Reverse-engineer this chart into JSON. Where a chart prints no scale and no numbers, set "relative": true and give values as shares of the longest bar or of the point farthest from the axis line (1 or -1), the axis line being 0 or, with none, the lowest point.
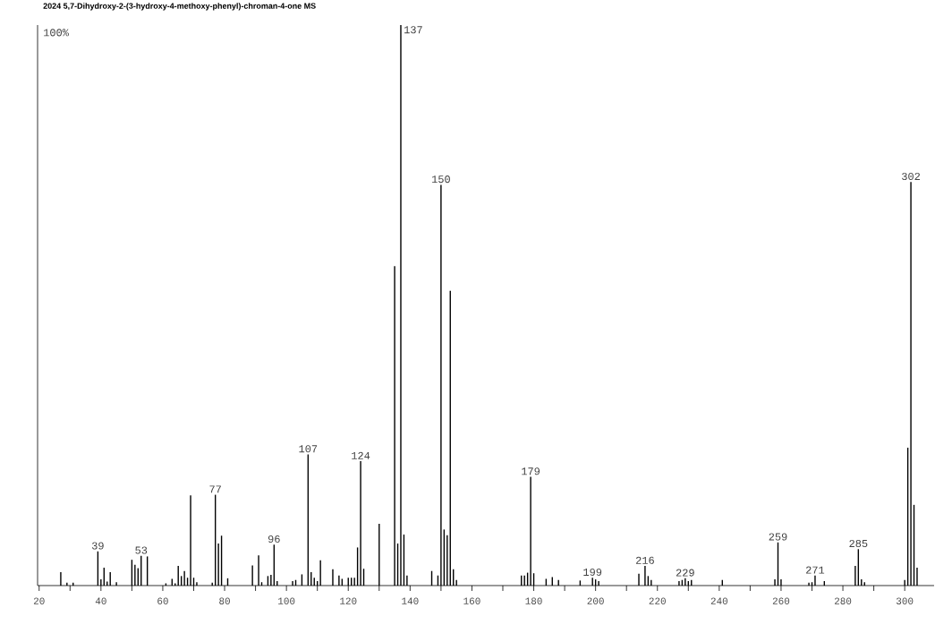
{
  "chart_data": {
    "type": "bar",
    "title": "2024   5,7-Dihydroxy-2-(3-hydroxy-4-methoxy-phenyl)-chroman-4-one   MS",
    "relative": true,
    "color": "#000000",
    "x": [
      27,
      29,
      31,
      39,
      40,
      41,
      42,
      43,
      45,
      50,
      51,
      52,
      53,
      55,
      61,
      63,
      64,
      65,
      66,
      67,
      68,
      69,
      70,
      71,
      76,
      77,
      78,
      79,
      81,
      89,
      91,
      92,
      94,
      95,
      96,
      97,
      102,
      103,
      105,
      107,
      108,
      109,
      110,
      111,
      115,
      117,
      118,
      120,
      121,
      122,
      123,
      124,
      125,
      130,
      135,
      136,
      137,
      138,
      139,
      147,
      149,
      150,
      151,
      152,
      153,
      154,
      155,
      176,
      177,
      178,
      179,
      180,
      184,
      186,
      188,
      195,
      199,
      200,
      201,
      214,
      216,
      217,
      218,
      227,
      228,
      229,
      230,
      231,
      241,
      258,
      259,
      260,
      269,
      270,
      271,
      274,
      284,
      285,
      286,
      287,
      300,
      301,
      302,
      303,
      304
    ],
    "values": [
      0.024,
      0.005,
      0.005,
      0.061,
      0.011,
      0.032,
      0.007,
      0.024,
      0.006,
      0.046,
      0.037,
      0.031,
      0.053,
      0.052,
      0.004,
      0.012,
      0.004,
      0.035,
      0.017,
      0.026,
      0.014,
      0.161,
      0.014,
      0.006,
      0.005,
      0.162,
      0.075,
      0.089,
      0.013,
      0.036,
      0.054,
      0.006,
      0.017,
      0.019,
      0.073,
      0.008,
      0.008,
      0.01,
      0.02,
      0.234,
      0.024,
      0.014,
      0.008,
      0.045,
      0.029,
      0.018,
      0.012,
      0.014,
      0.014,
      0.014,
      0.068,
      0.222,
      0.03,
      0.11,
      0.57,
      0.075,
      1,
      0.091,
      0.018,
      0.026,
      0.018,
      0.715,
      0.1,
      0.09,
      0.526,
      0.029,
      0.01,
      0.018,
      0.018,
      0.023,
      0.194,
      0.022,
      0.012,
      0.015,
      0.01,
      0.009,
      0.014,
      0.011,
      0.008,
      0.021,
      0.035,
      0.017,
      0.01,
      0.008,
      0.01,
      0.013,
      0.008,
      0.01,
      0.01,
      0.011,
      0.077,
      0.011,
      0.005,
      0.006,
      0.018,
      0.008,
      0.035,
      0.065,
      0.011,
      0.006,
      0.01,
      0.246,
      0.72,
      0.144,
      0.032
    ],
    "xlim": [
      19.5,
      309.5
    ],
    "xticks": [
      20,
      {
        "value": 30,
        "label": null
      },
      40,
      {
        "value": 50,
        "label": null
      },
      60,
      {
        "value": 70,
        "label": null
      },
      80,
      {
        "value": 90,
        "label": null
      },
      100,
      {
        "value": 110,
        "label": null
      },
      120,
      {
        "value": 130,
        "label": null
      },
      140,
      {
        "value": 150,
        "label": null
      },
      160,
      {
        "value": 170,
        "label": null
      },
      180,
      {
        "value": 190,
        "label": null
      },
      200,
      {
        "value": 210,
        "label": null
      },
      220,
      {
        "value": 230,
        "label": null
      },
      240,
      {
        "value": 250,
        "label": null
      },
      260,
      {
        "value": 270,
        "label": null
      },
      280,
      {
        "value": 290,
        "label": null
      },
      300
    ],
    "annotations": [
      "100%",
      {
        "text": "39",
        "x": 39,
        "y": 0.061
      },
      {
        "text": "53",
        "x": 53,
        "y": 0.053
      },
      {
        "text": "77",
        "x": 77,
        "y": 0.162
      },
      {
        "text": "96",
        "x": 96,
        "y": 0.073
      },
      {
        "text": "107",
        "x": 107,
        "y": 0.234
      },
      {
        "text": "124",
        "x": 124,
        "y": 0.222
      },
      {
        "text": "137",
        "x": 137,
        "y": 1
      },
      {
        "text": "150",
        "x": 150,
        "y": 0.715
      },
      {
        "text": "179",
        "x": 179,
        "y": 0.194
      },
      {
        "text": "199",
        "x": 199,
        "y": 0.014
      },
      {
        "text": "216",
        "x": 216,
        "y": 0.035
      },
      {
        "text": "229",
        "x": 229,
        "y": 0.013
      },
      {
        "text": "259",
        "x": 259,
        "y": 0.077
      },
      {
        "text": "271",
        "x": 271,
        "y": 0.018
      },
      {
        "text": "285",
        "x": 285,
        "y": 0.065
      },
      {
        "text": "302",
        "x": 302,
        "y": 0.72
      }
    ]
  }
}
